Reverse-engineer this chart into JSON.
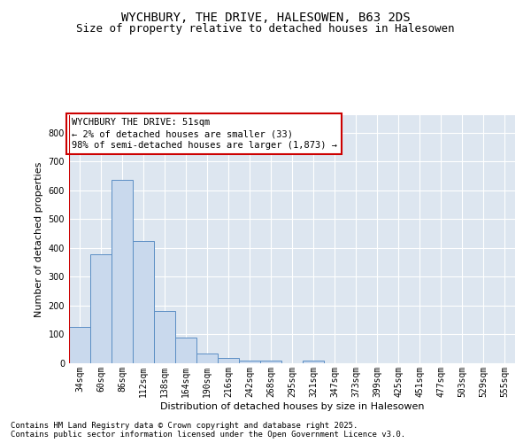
{
  "title": "WYCHBURY, THE DRIVE, HALESOWEN, B63 2DS",
  "subtitle": "Size of property relative to detached houses in Halesowen",
  "xlabel": "Distribution of detached houses by size in Halesowen",
  "ylabel": "Number of detached properties",
  "footnote1": "Contains HM Land Registry data © Crown copyright and database right 2025.",
  "footnote2": "Contains public sector information licensed under the Open Government Licence v3.0.",
  "annotation_title": "WYCHBURY THE DRIVE: 51sqm",
  "annotation_line1": "← 2% of detached houses are smaller (33)",
  "annotation_line2": "98% of semi-detached houses are larger (1,873) →",
  "bar_color": "#c9d9ed",
  "bar_edge_color": "#5b8ec4",
  "background_color": "#dde6f0",
  "annotation_box_color": "#ffffff",
  "annotation_border_color": "#cc0000",
  "vline_color": "#cc0000",
  "categories": [
    "34sqm",
    "60sqm",
    "86sqm",
    "112sqm",
    "138sqm",
    "164sqm",
    "190sqm",
    "216sqm",
    "242sqm",
    "268sqm",
    "295sqm",
    "321sqm",
    "347sqm",
    "373sqm",
    "399sqm",
    "425sqm",
    "451sqm",
    "477sqm",
    "503sqm",
    "529sqm",
    "555sqm"
  ],
  "values": [
    125,
    378,
    635,
    425,
    182,
    90,
    35,
    17,
    10,
    8,
    0,
    8,
    0,
    0,
    0,
    0,
    0,
    0,
    0,
    0,
    0
  ],
  "ylim": [
    0,
    860
  ],
  "yticks": [
    0,
    100,
    200,
    300,
    400,
    500,
    600,
    700,
    800
  ],
  "vline_x_index": 0,
  "title_fontsize": 10,
  "subtitle_fontsize": 9,
  "axis_label_fontsize": 8,
  "tick_fontsize": 7,
  "annotation_fontsize": 7.5,
  "footnote_fontsize": 6.5
}
